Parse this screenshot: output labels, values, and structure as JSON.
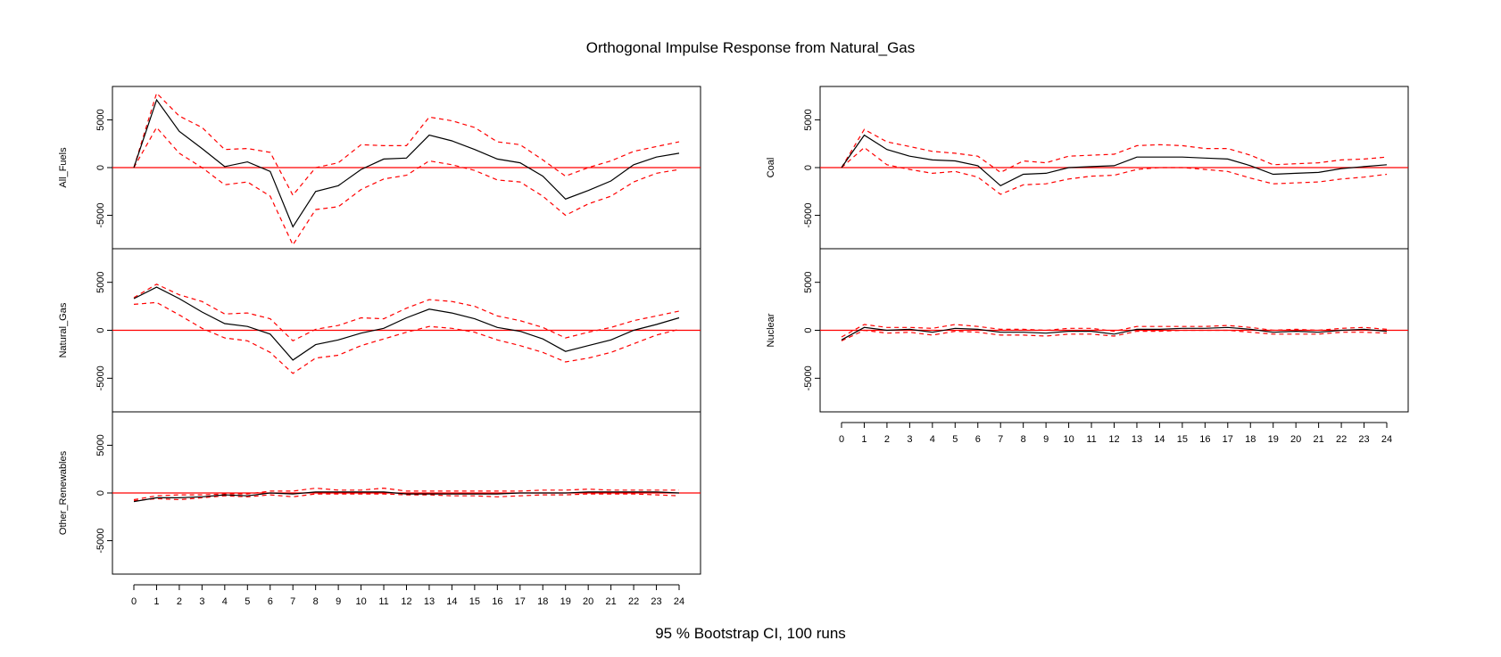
{
  "chart_data": {
    "type": "line",
    "title": "Orthogonal Impulse Response from Natural_Gas",
    "subtitle": "95 % Bootstrap CI,  100 runs",
    "x": [
      0,
      1,
      2,
      3,
      4,
      5,
      6,
      7,
      8,
      9,
      10,
      11,
      12,
      13,
      14,
      15,
      16,
      17,
      18,
      19,
      20,
      21,
      22,
      23,
      24
    ],
    "x_tick_labels": [
      "0",
      "1",
      "2",
      "3",
      "4",
      "5",
      "6",
      "7",
      "8",
      "9",
      "10",
      "11",
      "12",
      "13",
      "14",
      "15",
      "16",
      "17",
      "18",
      "19",
      "20",
      "21",
      "22",
      "23",
      "24"
    ],
    "ylim": [
      -8500,
      8500
    ],
    "y_ticks": [
      -5000,
      0,
      5000
    ],
    "y_tick_labels": [
      "-5000",
      "0",
      "5000"
    ],
    "colors": {
      "response": "#000000",
      "ci": "#ff0000",
      "zero_line": "#ff0000"
    },
    "panels": [
      {
        "ylabel": "All_Fuels",
        "response": [
          0,
          7100,
          3800,
          2000,
          100,
          600,
          -400,
          -6200,
          -2500,
          -1900,
          -200,
          900,
          1000,
          3400,
          2800,
          1900,
          900,
          500,
          -900,
          -3300,
          -2400,
          -1400,
          300,
          1100,
          1500
        ],
        "lower": [
          0,
          4200,
          1500,
          0,
          -1800,
          -1500,
          -3000,
          -8100,
          -4400,
          -4100,
          -2300,
          -1200,
          -800,
          700,
          300,
          -300,
          -1300,
          -1500,
          -3000,
          -5000,
          -3800,
          -3000,
          -1500,
          -600,
          -200
        ],
        "upper": [
          0,
          7800,
          5400,
          4200,
          1900,
          2000,
          1600,
          -2900,
          0,
          500,
          2400,
          2300,
          2300,
          5300,
          4900,
          4200,
          2700,
          2400,
          800,
          -900,
          0,
          700,
          1700,
          2200,
          2700
        ]
      },
      {
        "ylabel": "Natural_Gas",
        "response": [
          3300,
          4500,
          3300,
          1900,
          700,
          400,
          -400,
          -3100,
          -1500,
          -1000,
          -300,
          200,
          1300,
          2200,
          1800,
          1200,
          300,
          -100,
          -900,
          -2200,
          -1600,
          -1000,
          0,
          600,
          1300
        ],
        "lower": [
          2700,
          2900,
          1600,
          200,
          -800,
          -1100,
          -2300,
          -4500,
          -2900,
          -2600,
          -1600,
          -900,
          -200,
          400,
          200,
          -200,
          -1000,
          -1600,
          -2300,
          -3300,
          -2900,
          -2300,
          -1400,
          -500,
          100
        ],
        "upper": [
          3400,
          4800,
          3700,
          3000,
          1700,
          1800,
          1200,
          -1100,
          100,
          500,
          1300,
          1200,
          2300,
          3200,
          3000,
          2500,
          1500,
          1000,
          300,
          -800,
          -200,
          300,
          1000,
          1500,
          2000
        ]
      },
      {
        "ylabel": "Other_Renewables",
        "response": [
          -900,
          -500,
          -500,
          -400,
          -200,
          -300,
          0,
          -100,
          100,
          100,
          100,
          100,
          -100,
          -100,
          -100,
          -100,
          -100,
          0,
          0,
          0,
          100,
          100,
          100,
          100,
          0
        ],
        "lower": [
          -800,
          -600,
          -700,
          -500,
          -300,
          -400,
          -200,
          -400,
          -100,
          -100,
          -100,
          -100,
          -200,
          -200,
          -300,
          -300,
          -400,
          -300,
          -200,
          -200,
          -100,
          -100,
          -100,
          -200,
          -300
        ],
        "upper": [
          -700,
          -300,
          -200,
          -200,
          -100,
          -100,
          200,
          200,
          500,
          300,
          300,
          500,
          200,
          200,
          200,
          200,
          200,
          200,
          300,
          300,
          400,
          300,
          300,
          300,
          300
        ]
      },
      {
        "ylabel": "Coal",
        "response": [
          0,
          3400,
          1900,
          1200,
          800,
          700,
          200,
          -1900,
          -700,
          -600,
          0,
          100,
          200,
          1100,
          1100,
          1100,
          1000,
          900,
          200,
          -700,
          -600,
          -500,
          -100,
          100,
          300
        ],
        "lower": [
          0,
          2100,
          300,
          -200,
          -600,
          -400,
          -1000,
          -2800,
          -1800,
          -1700,
          -1200,
          -900,
          -800,
          -200,
          0,
          0,
          -200,
          -400,
          -1100,
          -1700,
          -1600,
          -1500,
          -1200,
          -1000,
          -700
        ],
        "upper": [
          0,
          4000,
          2700,
          2200,
          1700,
          1500,
          1200,
          -500,
          700,
          500,
          1200,
          1300,
          1400,
          2300,
          2400,
          2300,
          2000,
          2000,
          1300,
          300,
          400,
          500,
          800,
          900,
          1100
        ]
      },
      {
        "ylabel": "Nuclear",
        "response": [
          -1000,
          300,
          0,
          100,
          -200,
          200,
          100,
          -200,
          -200,
          -300,
          -100,
          -100,
          -400,
          100,
          100,
          200,
          200,
          300,
          100,
          -200,
          -100,
          -200,
          0,
          100,
          -100
        ],
        "lower": [
          -1100,
          0,
          -300,
          -200,
          -500,
          -100,
          -200,
          -500,
          -500,
          -600,
          -400,
          -400,
          -600,
          -100,
          -100,
          0,
          0,
          0,
          -200,
          -400,
          -400,
          -400,
          -200,
          -200,
          -300
        ],
        "upper": [
          -700,
          600,
          300,
          300,
          200,
          600,
          400,
          100,
          100,
          0,
          200,
          200,
          -100,
          400,
          400,
          400,
          400,
          500,
          300,
          0,
          100,
          0,
          200,
          300,
          100
        ]
      }
    ]
  }
}
